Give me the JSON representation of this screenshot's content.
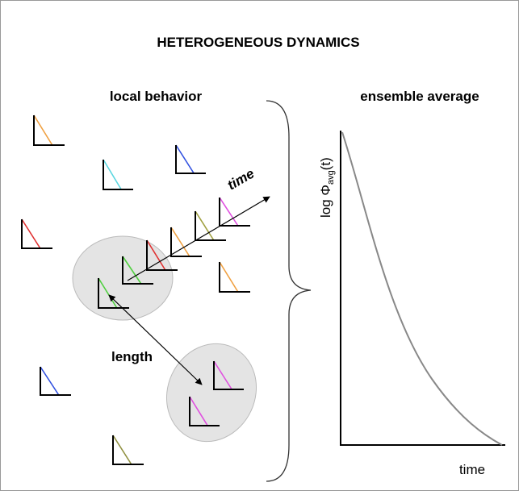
{
  "title": "HETEROGENEOUS DYNAMICS",
  "left_panel": {
    "heading": "local behavior",
    "arrow_label": "time",
    "distance_label": "length"
  },
  "right_panel": {
    "heading": "ensemble average",
    "y_axis_label": {
      "prefix": "log Φ",
      "subscript": "avg",
      "suffix": "(t)"
    },
    "x_axis_label": "time"
  }
}
